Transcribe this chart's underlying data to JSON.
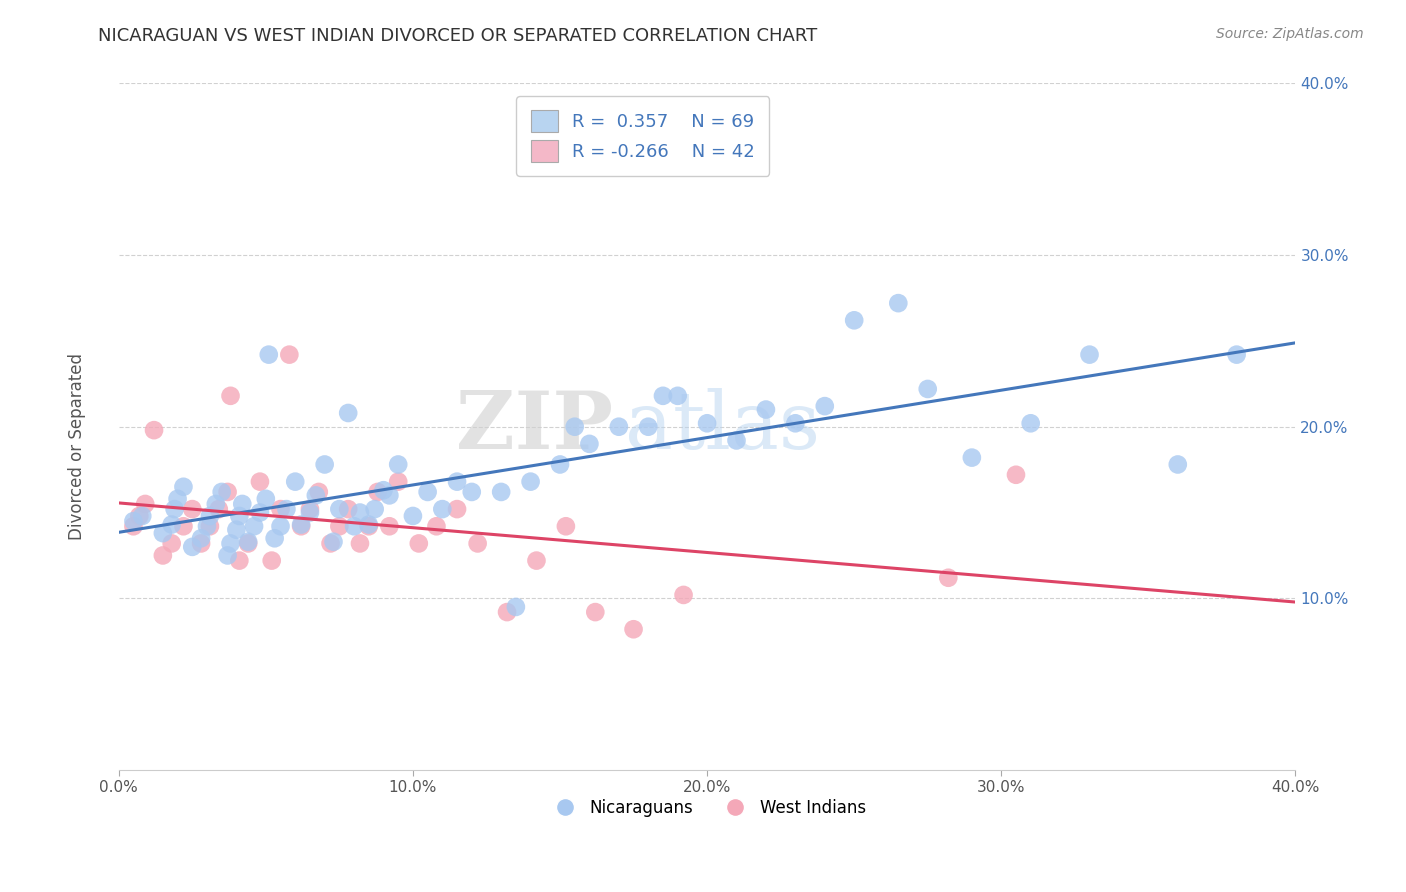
{
  "title": "NICARAGUAN VS WEST INDIAN DIVORCED OR SEPARATED CORRELATION CHART",
  "source": "Source: ZipAtlas.com",
  "ylabel": "Divorced or Separated",
  "xlabel": "",
  "xlim": [
    0.0,
    0.4
  ],
  "ylim": [
    0.0,
    0.4
  ],
  "xtick_labels": [
    "0.0%",
    "",
    "",
    "",
    "",
    "10.0%",
    "",
    "",
    "",
    "",
    "20.0%",
    "",
    "",
    "",
    "",
    "30.0%",
    "",
    "",
    "",
    "",
    "40.0%"
  ],
  "xtick_vals": [
    0.0,
    0.02,
    0.04,
    0.06,
    0.08,
    0.1,
    0.12,
    0.14,
    0.16,
    0.18,
    0.2,
    0.22,
    0.24,
    0.26,
    0.28,
    0.3,
    0.32,
    0.34,
    0.36,
    0.38,
    0.4
  ],
  "ytick_labels": [
    "10.0%",
    "20.0%",
    "30.0%",
    "40.0%"
  ],
  "ytick_vals": [
    0.1,
    0.2,
    0.3,
    0.4
  ],
  "legend_nicaraguan": "Nicaraguans",
  "legend_westindian": "West Indians",
  "R_nicaraguan": 0.357,
  "N_nicaraguan": 69,
  "R_westindian": -0.266,
  "N_westindian": 42,
  "blue_scatter_color": "#a8c8f0",
  "pink_scatter_color": "#f4a8b8",
  "blue_line_color": "#4477bb",
  "pink_line_color": "#dd4466",
  "blue_legend_color": "#b8d4f0",
  "pink_legend_color": "#f4b8c8",
  "watermark_zip": "ZIP",
  "watermark_atlas": "atlas",
  "background_color": "#ffffff",
  "grid_color": "#cccccc",
  "nicaraguan_x": [
    0.005,
    0.008,
    0.015,
    0.018,
    0.019,
    0.02,
    0.022,
    0.025,
    0.028,
    0.03,
    0.031,
    0.033,
    0.035,
    0.037,
    0.038,
    0.04,
    0.041,
    0.042,
    0.044,
    0.046,
    0.048,
    0.05,
    0.051,
    0.053,
    0.055,
    0.057,
    0.06,
    0.062,
    0.065,
    0.067,
    0.07,
    0.073,
    0.075,
    0.078,
    0.08,
    0.082,
    0.085,
    0.087,
    0.09,
    0.092,
    0.095,
    0.1,
    0.105,
    0.11,
    0.115,
    0.12,
    0.13,
    0.135,
    0.14,
    0.15,
    0.155,
    0.16,
    0.17,
    0.18,
    0.185,
    0.19,
    0.2,
    0.21,
    0.22,
    0.23,
    0.24,
    0.25,
    0.265,
    0.275,
    0.29,
    0.31,
    0.33,
    0.36,
    0.38
  ],
  "nicaraguan_y": [
    0.145,
    0.148,
    0.138,
    0.143,
    0.152,
    0.158,
    0.165,
    0.13,
    0.135,
    0.142,
    0.148,
    0.155,
    0.162,
    0.125,
    0.132,
    0.14,
    0.148,
    0.155,
    0.133,
    0.142,
    0.15,
    0.158,
    0.242,
    0.135,
    0.142,
    0.152,
    0.168,
    0.143,
    0.15,
    0.16,
    0.178,
    0.133,
    0.152,
    0.208,
    0.142,
    0.15,
    0.143,
    0.152,
    0.163,
    0.16,
    0.178,
    0.148,
    0.162,
    0.152,
    0.168,
    0.162,
    0.162,
    0.095,
    0.168,
    0.178,
    0.2,
    0.19,
    0.2,
    0.2,
    0.218,
    0.218,
    0.202,
    0.192,
    0.21,
    0.202,
    0.212,
    0.262,
    0.272,
    0.222,
    0.182,
    0.202,
    0.242,
    0.178,
    0.242
  ],
  "westindian_x": [
    0.005,
    0.007,
    0.009,
    0.012,
    0.015,
    0.018,
    0.022,
    0.025,
    0.028,
    0.031,
    0.034,
    0.037,
    0.038,
    0.041,
    0.044,
    0.048,
    0.052,
    0.055,
    0.058,
    0.062,
    0.065,
    0.068,
    0.072,
    0.075,
    0.078,
    0.082,
    0.085,
    0.088,
    0.092,
    0.095,
    0.102,
    0.108,
    0.115,
    0.122,
    0.132,
    0.142,
    0.152,
    0.162,
    0.175,
    0.192,
    0.282,
    0.305
  ],
  "westindian_y": [
    0.142,
    0.148,
    0.155,
    0.198,
    0.125,
    0.132,
    0.142,
    0.152,
    0.132,
    0.142,
    0.152,
    0.162,
    0.218,
    0.122,
    0.132,
    0.168,
    0.122,
    0.152,
    0.242,
    0.142,
    0.152,
    0.162,
    0.132,
    0.142,
    0.152,
    0.132,
    0.142,
    0.162,
    0.142,
    0.168,
    0.132,
    0.142,
    0.152,
    0.132,
    0.092,
    0.122,
    0.142,
    0.092,
    0.082,
    0.102,
    0.112,
    0.172
  ]
}
